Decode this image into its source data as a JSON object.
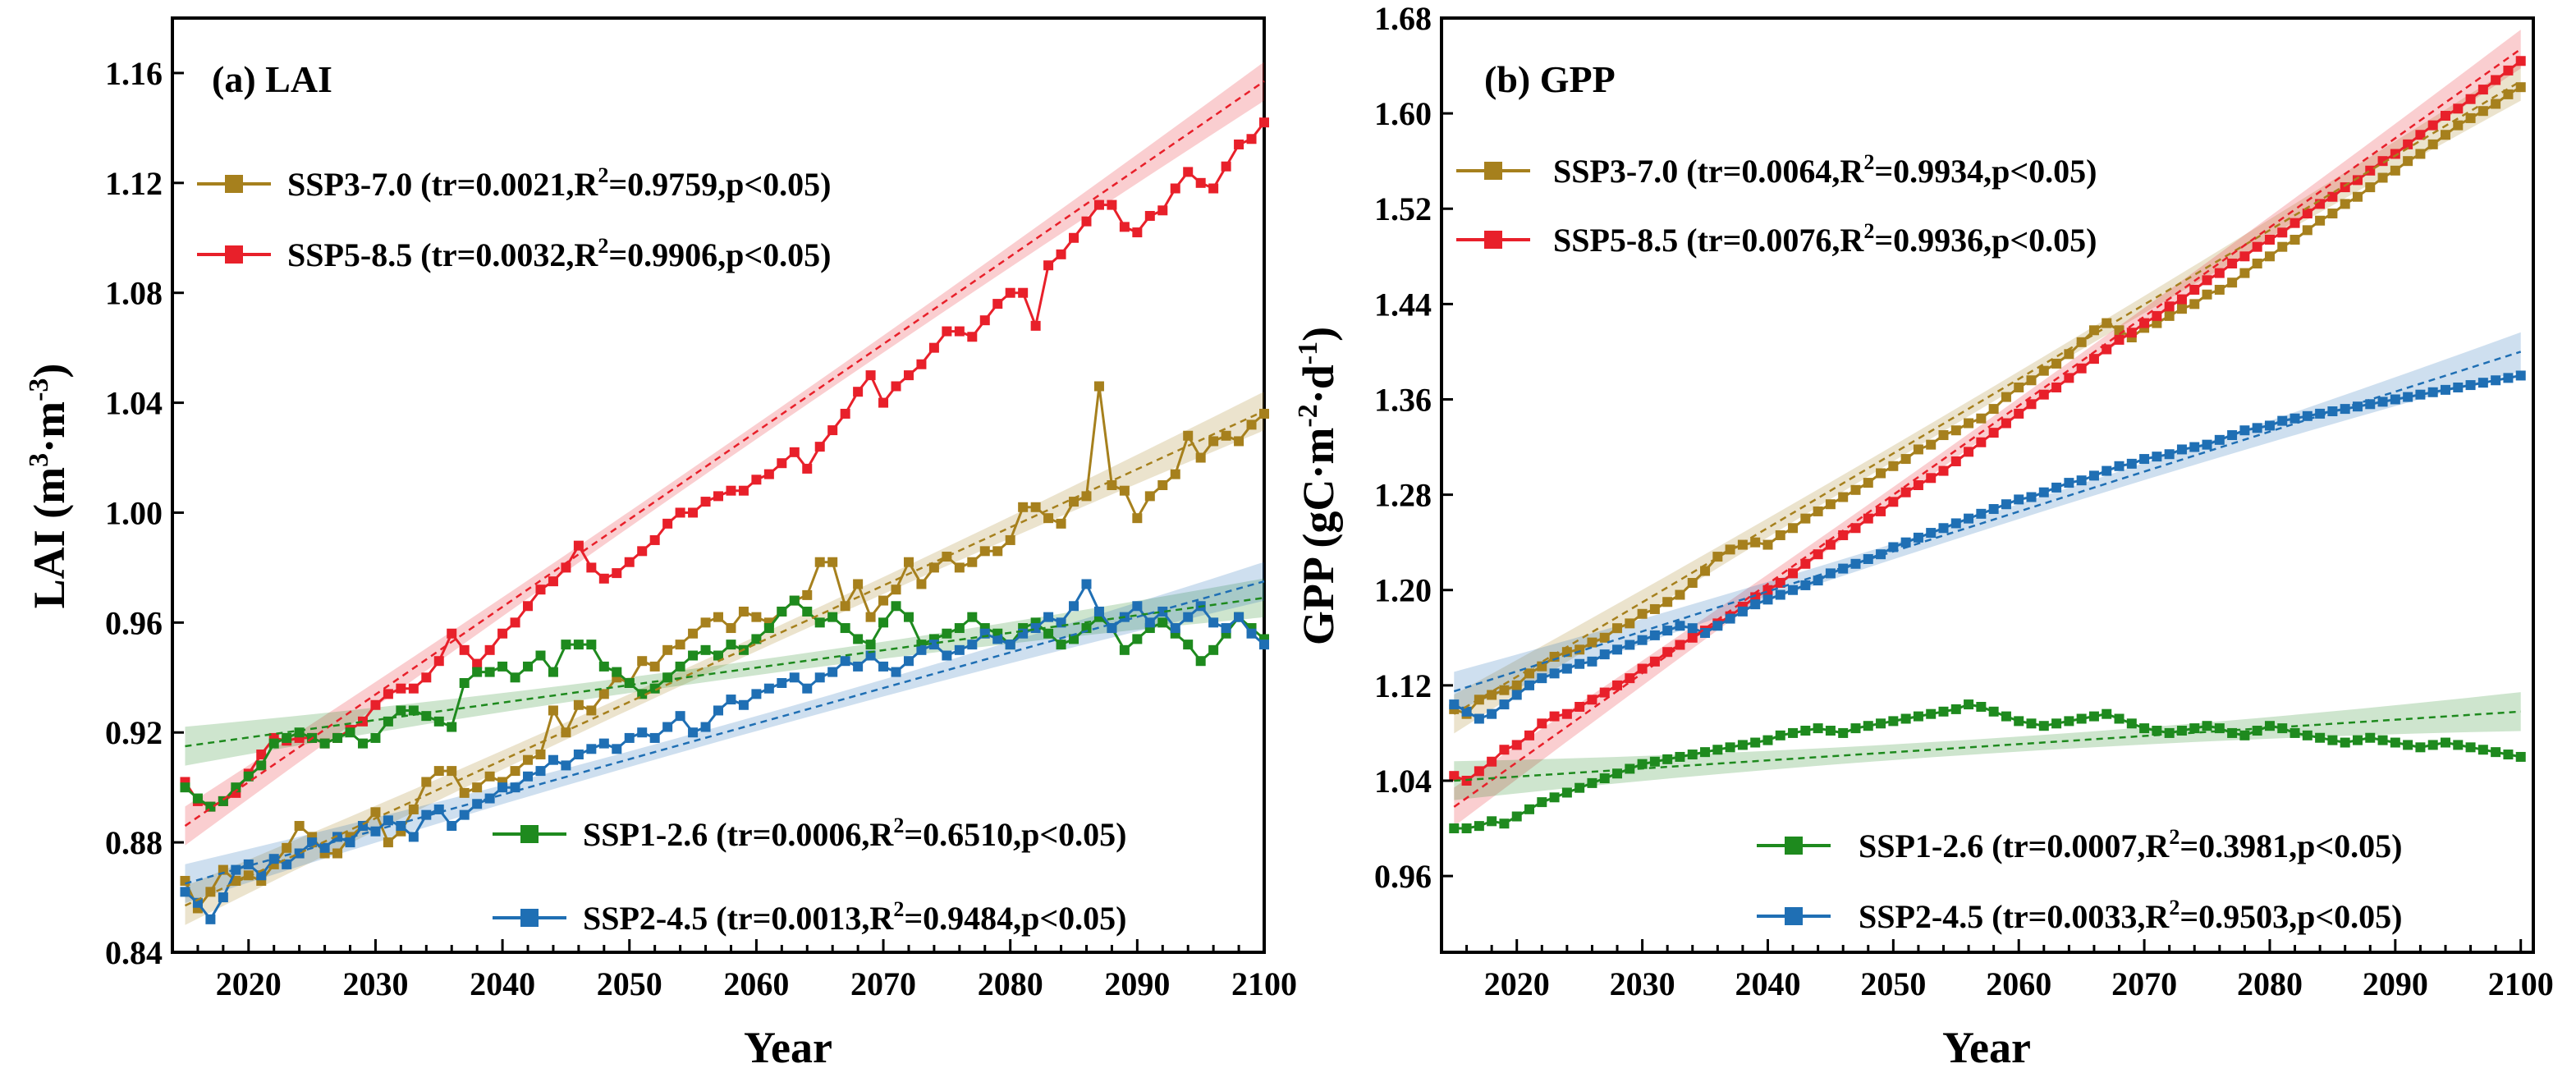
{
  "chart_data": [
    {
      "panel": "a",
      "title": "(a) LAI",
      "type": "line",
      "xlabel": "Year",
      "ylabel": "LAI (m³·m⁻³)",
      "ylabel_main": "LAI (m",
      "ylabel_sup1": "3",
      "ylabel_mid": "·m",
      "ylabel_sup2": "-3",
      "ylabel_end": ")",
      "xlim": [
        2014,
        2100
      ],
      "ylim": [
        0.84,
        1.18
      ],
      "xticks": [
        2020,
        2030,
        2040,
        2050,
        2060,
        2070,
        2080,
        2090,
        2100
      ],
      "yticks": [
        0.84,
        0.88,
        0.92,
        0.96,
        1.0,
        1.04,
        1.08,
        1.12,
        1.16
      ],
      "ytick_labels": [
        "0.84",
        "0.88",
        "0.92",
        "0.96",
        "1.00",
        "1.04",
        "1.08",
        "1.12",
        "1.16"
      ],
      "start_year": 2015,
      "series": [
        {
          "name": "SSP3-7.0",
          "color": "#a6801d",
          "legend_pre": "SSP3-7.0 (tr=0.0021,R",
          "legend_post": "=0.9759,p<0.05)",
          "tr": 0.0021,
          "r2": 0.9759,
          "p": "<0.05",
          "trend": [
            0.857,
            1.037
          ],
          "values": [
            0.866,
            0.856,
            0.862,
            0.87,
            0.866,
            0.868,
            0.866,
            0.872,
            0.878,
            0.886,
            0.882,
            0.876,
            0.876,
            0.882,
            0.886,
            0.891,
            0.88,
            0.884,
            0.892,
            0.902,
            0.906,
            0.906,
            0.898,
            0.9,
            0.904,
            0.902,
            0.906,
            0.91,
            0.912,
            0.928,
            0.92,
            0.93,
            0.928,
            0.934,
            0.94,
            0.938,
            0.946,
            0.944,
            0.95,
            0.952,
            0.956,
            0.96,
            0.962,
            0.958,
            0.964,
            0.962,
            0.96,
            0.964,
            0.968,
            0.97,
            0.982,
            0.982,
            0.966,
            0.974,
            0.962,
            0.968,
            0.972,
            0.982,
            0.974,
            0.98,
            0.984,
            0.98,
            0.982,
            0.986,
            0.986,
            0.99,
            1.002,
            1.002,
            0.998,
            0.996,
            1.004,
            1.006,
            1.046,
            1.01,
            1.008,
            0.998,
            1.006,
            1.01,
            1.014,
            1.028,
            1.02,
            1.026,
            1.028,
            1.026,
            1.032,
            1.036
          ]
        },
        {
          "name": "SSP5-8.5",
          "color": "#e8202a",
          "legend_pre": "SSP5-8.5 (tr=0.0032,R",
          "legend_post": "=0.9906,p<0.05)",
          "tr": 0.0032,
          "r2": 0.9906,
          "p": "<0.05",
          "trend": [
            0.886,
            1.157
          ],
          "values": [
            0.902,
            0.895,
            0.893,
            0.895,
            0.898,
            0.905,
            0.912,
            0.918,
            0.917,
            0.918,
            0.918,
            0.916,
            0.918,
            0.921,
            0.924,
            0.93,
            0.934,
            0.936,
            0.936,
            0.94,
            0.946,
            0.956,
            0.95,
            0.945,
            0.95,
            0.956,
            0.96,
            0.966,
            0.972,
            0.975,
            0.98,
            0.988,
            0.98,
            0.976,
            0.978,
            0.982,
            0.986,
            0.99,
            0.996,
            1.0,
            1.0,
            1.004,
            1.006,
            1.008,
            1.008,
            1.012,
            1.014,
            1.018,
            1.022,
            1.016,
            1.024,
            1.03,
            1.036,
            1.044,
            1.05,
            1.04,
            1.046,
            1.05,
            1.054,
            1.06,
            1.066,
            1.066,
            1.064,
            1.07,
            1.076,
            1.08,
            1.08,
            1.068,
            1.09,
            1.094,
            1.1,
            1.106,
            1.112,
            1.112,
            1.104,
            1.102,
            1.108,
            1.11,
            1.118,
            1.124,
            1.12,
            1.118,
            1.126,
            1.134,
            1.136,
            1.142
          ]
        },
        {
          "name": "SSP1-2.6",
          "color": "#1e8a1e",
          "legend_pre": "SSP1-2.6 (tr=0.0006,R",
          "legend_post": "=0.6510,p<0.05)",
          "tr": 0.0006,
          "r2": 0.651,
          "p": "<0.05",
          "trend": [
            0.915,
            0.969
          ],
          "values": [
            0.9,
            0.896,
            0.893,
            0.895,
            0.9,
            0.904,
            0.908,
            0.916,
            0.918,
            0.92,
            0.918,
            0.916,
            0.918,
            0.92,
            0.916,
            0.918,
            0.924,
            0.928,
            0.928,
            0.926,
            0.924,
            0.922,
            0.938,
            0.942,
            0.942,
            0.944,
            0.94,
            0.944,
            0.948,
            0.942,
            0.952,
            0.952,
            0.952,
            0.944,
            0.942,
            0.938,
            0.934,
            0.936,
            0.94,
            0.944,
            0.948,
            0.95,
            0.948,
            0.952,
            0.95,
            0.954,
            0.958,
            0.964,
            0.968,
            0.964,
            0.96,
            0.962,
            0.958,
            0.954,
            0.952,
            0.96,
            0.966,
            0.962,
            0.952,
            0.954,
            0.956,
            0.958,
            0.962,
            0.958,
            0.956,
            0.952,
            0.958,
            0.96,
            0.956,
            0.952,
            0.954,
            0.958,
            0.962,
            0.958,
            0.95,
            0.954,
            0.958,
            0.96,
            0.956,
            0.952,
            0.946,
            0.95,
            0.956,
            0.962,
            0.958,
            0.954
          ]
        },
        {
          "name": "SSP2-4.5",
          "color": "#1f6fb4",
          "legend_pre": "SSP2-4.5 (tr=0.0013,R",
          "legend_post": "=0.9484,p<0.05)",
          "tr": 0.0013,
          "r2": 0.9484,
          "p": "<0.05",
          "trend": [
            0.865,
            0.975
          ],
          "values": [
            0.862,
            0.858,
            0.852,
            0.86,
            0.87,
            0.872,
            0.868,
            0.874,
            0.872,
            0.876,
            0.88,
            0.878,
            0.882,
            0.88,
            0.886,
            0.884,
            0.888,
            0.886,
            0.882,
            0.89,
            0.892,
            0.886,
            0.89,
            0.894,
            0.896,
            0.9,
            0.9,
            0.904,
            0.906,
            0.91,
            0.908,
            0.912,
            0.914,
            0.916,
            0.914,
            0.918,
            0.92,
            0.918,
            0.922,
            0.926,
            0.92,
            0.922,
            0.928,
            0.932,
            0.93,
            0.934,
            0.936,
            0.938,
            0.94,
            0.936,
            0.94,
            0.942,
            0.946,
            0.944,
            0.948,
            0.944,
            0.942,
            0.946,
            0.95,
            0.952,
            0.948,
            0.95,
            0.952,
            0.956,
            0.954,
            0.952,
            0.956,
            0.958,
            0.962,
            0.96,
            0.966,
            0.974,
            0.964,
            0.958,
            0.962,
            0.966,
            0.96,
            0.964,
            0.958,
            0.962,
            0.966,
            0.96,
            0.958,
            0.962,
            0.956,
            0.952
          ]
        }
      ]
    },
    {
      "panel": "b",
      "title": "(b) GPP",
      "type": "line",
      "xlabel": "Year",
      "ylabel": "GPP (gC·m⁻²·d⁻¹)",
      "ylabel_main": "GPP (gC·m",
      "ylabel_sup1": "-2",
      "ylabel_mid": "·d",
      "ylabel_sup2": "-1",
      "ylabel_end": ")",
      "xlim": [
        2014,
        2101
      ],
      "ylim": [
        0.896,
        1.68
      ],
      "xticks": [
        2020,
        2030,
        2040,
        2050,
        2060,
        2070,
        2080,
        2090,
        2100
      ],
      "yticks": [
        0.96,
        1.04,
        1.12,
        1.2,
        1.28,
        1.36,
        1.44,
        1.52,
        1.6,
        1.68
      ],
      "ytick_labels": [
        "0.96",
        "1.04",
        "1.12",
        "1.20",
        "1.28",
        "1.36",
        "1.44",
        "1.52",
        "1.60",
        "1.68"
      ],
      "start_year": 2015,
      "series": [
        {
          "name": "SSP3-7.0",
          "color": "#a6801d",
          "legend_pre": "SSP3-7.0 (tr=0.0064,R",
          "legend_post": "=0.9934,p<0.05)",
          "tr": 0.0064,
          "r2": 0.9934,
          "p": "<0.05",
          "trend": [
            1.096,
            1.627
          ],
          "values": [
            1.1,
            1.096,
            1.108,
            1.112,
            1.116,
            1.12,
            1.13,
            1.136,
            1.144,
            1.148,
            1.15,
            1.156,
            1.16,
            1.168,
            1.172,
            1.18,
            1.184,
            1.19,
            1.196,
            1.206,
            1.216,
            1.228,
            1.234,
            1.238,
            1.24,
            1.238,
            1.246,
            1.252,
            1.26,
            1.266,
            1.272,
            1.278,
            1.284,
            1.29,
            1.298,
            1.304,
            1.31,
            1.318,
            1.322,
            1.33,
            1.334,
            1.34,
            1.344,
            1.352,
            1.362,
            1.37,
            1.376,
            1.384,
            1.39,
            1.398,
            1.408,
            1.418,
            1.424,
            1.418,
            1.412,
            1.42,
            1.424,
            1.43,
            1.436,
            1.44,
            1.448,
            1.452,
            1.458,
            1.466,
            1.474,
            1.48,
            1.488,
            1.494,
            1.502,
            1.51,
            1.516,
            1.524,
            1.53,
            1.538,
            1.546,
            1.552,
            1.56,
            1.566,
            1.574,
            1.582,
            1.59,
            1.596,
            1.602,
            1.608,
            1.616,
            1.622
          ]
        },
        {
          "name": "SSP5-8.5",
          "color": "#e8202a",
          "legend_pre": "SSP5-8.5 (tr=0.0076,R",
          "legend_post": "=0.9936,p<0.05)",
          "tr": 0.0076,
          "r2": 0.9936,
          "p": "<0.05",
          "trend": [
            1.018,
            1.654
          ],
          "values": [
            1.044,
            1.04,
            1.048,
            1.056,
            1.066,
            1.07,
            1.078,
            1.088,
            1.094,
            1.096,
            1.102,
            1.108,
            1.114,
            1.12,
            1.126,
            1.134,
            1.14,
            1.148,
            1.154,
            1.16,
            1.166,
            1.172,
            1.178,
            1.186,
            1.194,
            1.2,
            1.206,
            1.214,
            1.222,
            1.23,
            1.238,
            1.246,
            1.252,
            1.26,
            1.266,
            1.274,
            1.282,
            1.288,
            1.294,
            1.3,
            1.308,
            1.316,
            1.324,
            1.332,
            1.34,
            1.348,
            1.356,
            1.364,
            1.37,
            1.378,
            1.386,
            1.394,
            1.402,
            1.41,
            1.416,
            1.424,
            1.43,
            1.438,
            1.444,
            1.452,
            1.46,
            1.466,
            1.474,
            1.48,
            1.488,
            1.494,
            1.5,
            1.508,
            1.516,
            1.524,
            1.53,
            1.538,
            1.544,
            1.552,
            1.56,
            1.566,
            1.574,
            1.582,
            1.59,
            1.598,
            1.604,
            1.612,
            1.62,
            1.628,
            1.636,
            1.644
          ]
        },
        {
          "name": "SSP1-2.6",
          "color": "#1e8a1e",
          "legend_pre": "SSP1-2.6 (tr=0.0007,R",
          "legend_post": "=0.3981,p<0.05)",
          "tr": 0.0007,
          "r2": 0.3981,
          "p": "<0.05",
          "trend": [
            1.04,
            1.098
          ],
          "values": [
            1.0,
            1.0,
            1.002,
            1.006,
            1.004,
            1.01,
            1.016,
            1.022,
            1.026,
            1.03,
            1.034,
            1.038,
            1.042,
            1.046,
            1.05,
            1.054,
            1.056,
            1.058,
            1.06,
            1.062,
            1.064,
            1.066,
            1.068,
            1.07,
            1.072,
            1.074,
            1.078,
            1.08,
            1.082,
            1.084,
            1.082,
            1.08,
            1.084,
            1.086,
            1.088,
            1.09,
            1.092,
            1.094,
            1.096,
            1.098,
            1.1,
            1.104,
            1.102,
            1.098,
            1.094,
            1.09,
            1.088,
            1.086,
            1.088,
            1.09,
            1.092,
            1.094,
            1.096,
            1.092,
            1.088,
            1.084,
            1.082,
            1.08,
            1.082,
            1.084,
            1.086,
            1.084,
            1.08,
            1.078,
            1.082,
            1.086,
            1.084,
            1.08,
            1.078,
            1.076,
            1.074,
            1.072,
            1.074,
            1.076,
            1.074,
            1.072,
            1.07,
            1.068,
            1.07,
            1.072,
            1.07,
            1.068,
            1.066,
            1.064,
            1.062,
            1.06
          ]
        },
        {
          "name": "SSP2-4.5",
          "color": "#1f6fb4",
          "legend_pre": "SSP2-4.5 (tr=0.0033,R",
          "legend_post": "=0.9503,p<0.05)",
          "tr": 0.0033,
          "r2": 0.9503,
          "p": "<0.05",
          "trend": [
            1.115,
            1.4
          ],
          "values": [
            1.104,
            1.098,
            1.092,
            1.096,
            1.104,
            1.112,
            1.12,
            1.126,
            1.13,
            1.134,
            1.138,
            1.14,
            1.146,
            1.15,
            1.154,
            1.158,
            1.162,
            1.166,
            1.17,
            1.168,
            1.164,
            1.17,
            1.176,
            1.182,
            1.188,
            1.192,
            1.196,
            1.2,
            1.204,
            1.208,
            1.214,
            1.218,
            1.222,
            1.226,
            1.23,
            1.236,
            1.24,
            1.244,
            1.248,
            1.252,
            1.256,
            1.26,
            1.264,
            1.268,
            1.272,
            1.276,
            1.278,
            1.282,
            1.286,
            1.29,
            1.292,
            1.296,
            1.3,
            1.304,
            1.306,
            1.31,
            1.312,
            1.314,
            1.318,
            1.32,
            1.322,
            1.326,
            1.33,
            1.334,
            1.336,
            1.338,
            1.342,
            1.344,
            1.346,
            1.348,
            1.35,
            1.352,
            1.354,
            1.356,
            1.358,
            1.36,
            1.362,
            1.364,
            1.366,
            1.368,
            1.37,
            1.372,
            1.374,
            1.376,
            1.378,
            1.38
          ]
        }
      ]
    }
  ]
}
